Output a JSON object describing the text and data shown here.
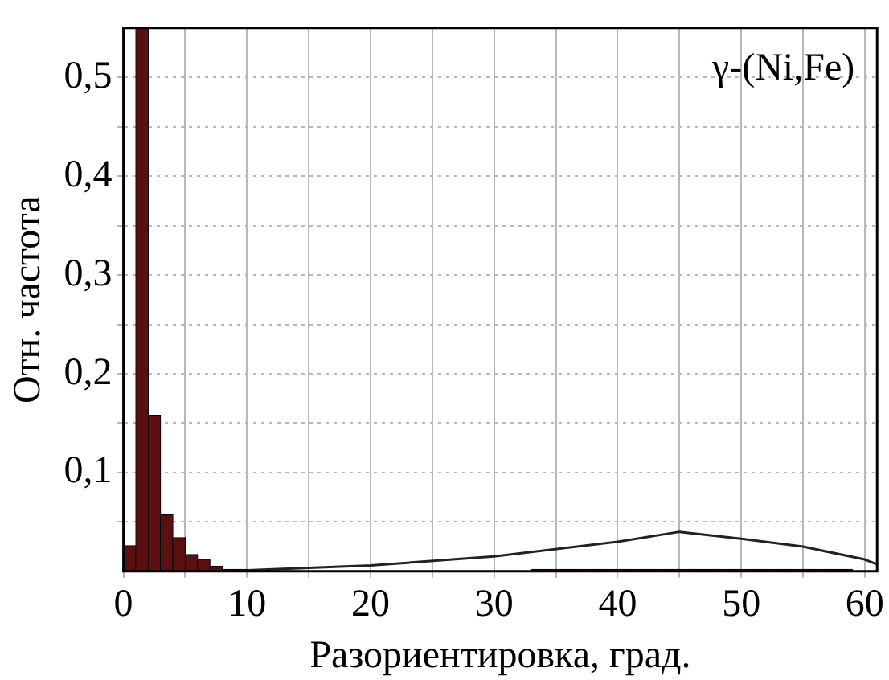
{
  "chart_data": {
    "type": "histogram",
    "xlabel": "Разориентировка, град.",
    "ylabel": "Отн. частота",
    "annotations": [
      "γ-(Ni,Fe)"
    ],
    "series": [
      {
        "color": "#5a1010",
        "bins": [
          0,
          1,
          2,
          3,
          4,
          5,
          6,
          7,
          8,
          9,
          10,
          11,
          12,
          13,
          14,
          15,
          16,
          17,
          18,
          19,
          20,
          21,
          22,
          23,
          24,
          25,
          26,
          27,
          28,
          29,
          30,
          31,
          32,
          33,
          34,
          35,
          36,
          37,
          38,
          39,
          40,
          41,
          42,
          43,
          44,
          45,
          46,
          47,
          48,
          49,
          50,
          51,
          52,
          53,
          54,
          55,
          56,
          57,
          58,
          59,
          60,
          61
        ],
        "values": [
          0.026,
          0.55,
          0.158,
          0.057,
          0.034,
          0.017,
          0.012,
          0.005,
          0.002,
          0.002,
          0,
          0,
          0,
          0,
          0,
          0,
          0,
          0,
          0,
          0,
          0,
          0,
          0,
          0,
          0,
          0,
          0,
          0,
          0,
          0,
          0,
          0,
          0,
          0.002,
          0.002,
          0.002,
          0.002,
          0.002,
          0.002,
          0.002,
          0.002,
          0.002,
          0.002,
          0.002,
          0.002,
          0.002,
          0.002,
          0.002,
          0.002,
          0.002,
          0.002,
          0.002,
          0.002,
          0.002,
          0.002,
          0.002,
          0.002,
          0.002,
          0.002,
          0,
          0
        ]
      },
      {
        "type": "line",
        "color": "#222222",
        "x": [
          0,
          10,
          20,
          30,
          40,
          45,
          50,
          55,
          60,
          61
        ],
        "values": [
          0,
          0.001,
          0.006,
          0.015,
          0.03,
          0.04,
          0.033,
          0.025,
          0.012,
          0.007
        ]
      }
    ],
    "xlim": [
      0,
      61
    ],
    "xticks": [
      0,
      {
        "value": 5,
        "label": null
      },
      10,
      {
        "value": 15,
        "label": null
      },
      20,
      {
        "value": 25,
        "label": null
      },
      30,
      {
        "value": 35,
        "label": null
      },
      40,
      {
        "value": 45,
        "label": null
      },
      50,
      {
        "value": 55,
        "label": null
      },
      60
    ],
    "ylim": [
      0,
      0.55
    ],
    "yticks": [
      {
        "value": 0.05,
        "label": null
      },
      {
        "value": 0.1,
        "label": "0,1"
      },
      {
        "value": 0.15,
        "label": null
      },
      {
        "value": 0.2,
        "label": "0,2"
      },
      {
        "value": 0.25,
        "label": null
      },
      {
        "value": 0.3,
        "label": "0,3"
      },
      {
        "value": 0.35,
        "label": null
      },
      {
        "value": 0.4,
        "label": "0,4"
      },
      {
        "value": 0.45,
        "label": null
      },
      {
        "value": 0.5,
        "label": "0,5"
      }
    ],
    "grid": true,
    "legend": false,
    "marker": "none",
    "line_style": "solid"
  }
}
